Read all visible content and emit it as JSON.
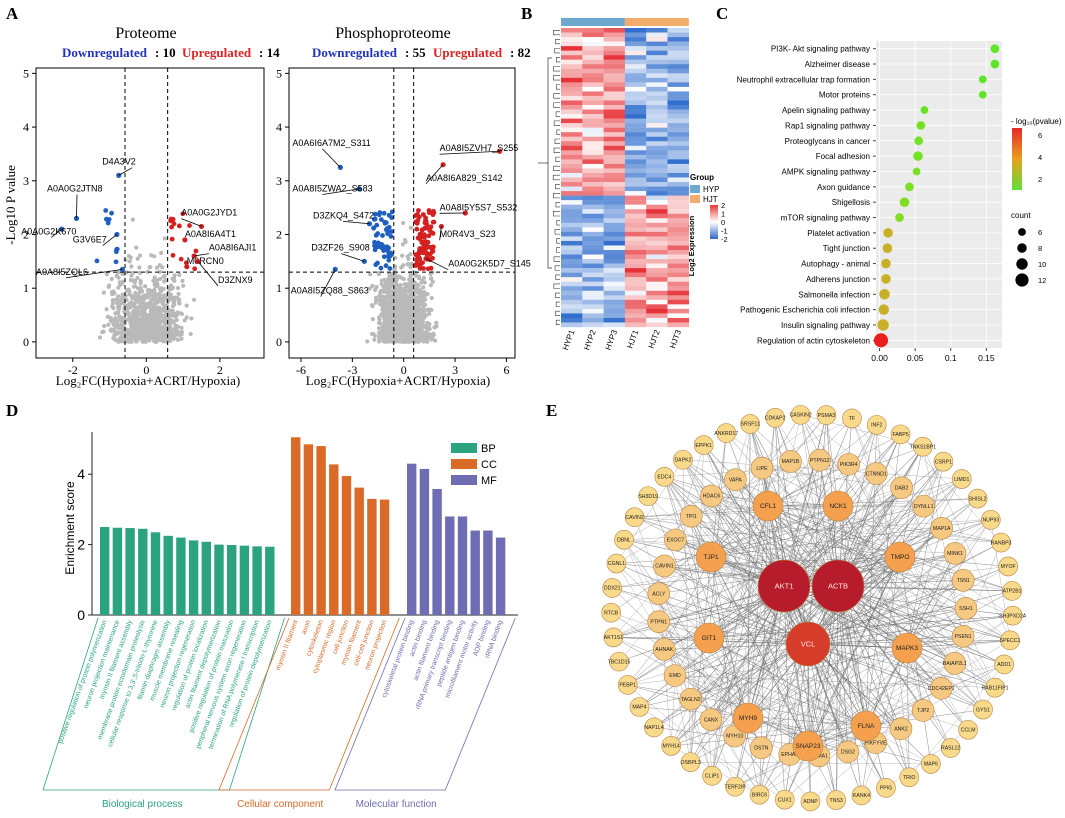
{
  "panel_labels": [
    "A",
    "B",
    "C",
    "D",
    "E"
  ],
  "chart_data": [
    {
      "id": "proteome",
      "type": "scatter",
      "title": "Proteome",
      "down_label": "Downregulated",
      "down_count": "10",
      "up_label": "Upregulated",
      "up_count": "14",
      "xlabel": "Log₂FC(Hypoxia+ACRT/Hypoxia)",
      "ylabel": "-Log10 P value",
      "xlim": [
        -3,
        3.2
      ],
      "ylim": [
        -0.3,
        5.1
      ],
      "xticks": [
        -2,
        0,
        2
      ],
      "yticks": [
        0,
        1,
        2,
        3,
        4,
        5
      ],
      "vlines": [
        -0.58,
        0.58
      ],
      "hline": 1.3,
      "labels": [
        {
          "text": "D4A3V2",
          "x": -0.75,
          "y": 3.1,
          "lx": -1.2,
          "ly": 3.3
        },
        {
          "text": "A0A0G2JTN8",
          "x": -1.9,
          "y": 2.3,
          "lx": -2.7,
          "ly": 2.8
        },
        {
          "text": "A0A0G2K670",
          "x": -2.3,
          "y": 2.1,
          "lx": -3.4,
          "ly": 2.0
        },
        {
          "text": "G3V6E7",
          "x": -0.8,
          "y": 2.0,
          "lx": -2.0,
          "ly": 1.85
        },
        {
          "text": "A0A8I5ZQL6",
          "x": -0.65,
          "y": 1.35,
          "lx": -3.0,
          "ly": 1.25
        },
        {
          "text": "A0A0G2JYD1",
          "x": 1.5,
          "y": 2.15,
          "lx": 0.95,
          "ly": 2.35
        },
        {
          "text": "A0A8I6A4T1",
          "x": 1.05,
          "y": 1.9,
          "lx": 1.05,
          "ly": 1.95
        },
        {
          "text": "A0A8I6AJI1",
          "x": 1.3,
          "y": 1.6,
          "lx": 1.7,
          "ly": 1.7
        },
        {
          "text": "M0RCN0",
          "x": 1.1,
          "y": 1.4,
          "lx": 1.1,
          "ly": 1.45
        },
        {
          "text": "D3ZNX9",
          "x": 1.4,
          "y": 1.5,
          "lx": 1.95,
          "ly": 1.1
        }
      ]
    },
    {
      "id": "phosphoproteome",
      "type": "scatter",
      "title": "Phosphoproteome",
      "down_label": "Downregulated",
      "down_count": "55",
      "up_label": "Upregulated",
      "up_count": "82",
      "xlabel": "Log₂FC(Hypoxia+ACRT/Hypoxia)",
      "ylabel": "",
      "xlim": [
        -6.7,
        6.5
      ],
      "ylim": [
        -0.3,
        5.1
      ],
      "xticks": [
        -6,
        -3,
        0,
        3,
        6
      ],
      "yticks": [
        0,
        1,
        2,
        3,
        4,
        5
      ],
      "vlines": [
        -0.58,
        0.58
      ],
      "hline": 1.3,
      "labels": [
        {
          "text": "A0A6I6A7M2_S311",
          "x": -3.7,
          "y": 3.25,
          "lx": -6.5,
          "ly": 3.65
        },
        {
          "text": "A0A8I5ZVH7_S255",
          "x": 5.6,
          "y": 3.55,
          "lx": 2.1,
          "ly": 3.55
        },
        {
          "text": "A0A8I6A829_S142",
          "x": 2.3,
          "y": 3.3,
          "lx": 1.3,
          "ly": 3.0
        },
        {
          "text": "A0A8I5ZWA2_S583",
          "x": -2.6,
          "y": 2.85,
          "lx": -6.5,
          "ly": 2.8
        },
        {
          "text": "A0A8I5Y5S7_S532",
          "x": 3.6,
          "y": 2.4,
          "lx": 2.1,
          "ly": 2.45
        },
        {
          "text": "D3ZKQ4_S472",
          "x": -2.0,
          "y": 2.2,
          "lx": -5.3,
          "ly": 2.3
        },
        {
          "text": "M0R4V3_S23",
          "x": 2.2,
          "y": 2.15,
          "lx": 2.1,
          "ly": 1.95
        },
        {
          "text": "D3ZF26_S908",
          "x": -2.3,
          "y": 1.5,
          "lx": -5.4,
          "ly": 1.7
        },
        {
          "text": "A0A0G2K5D7_S145",
          "x": 1.3,
          "y": 1.55,
          "lx": 2.6,
          "ly": 1.4
        },
        {
          "text": "A0A8I5ZQ88_S863",
          "x": -4.0,
          "y": 1.35,
          "lx": -6.6,
          "ly": 0.9
        }
      ]
    },
    {
      "id": "heatmap",
      "type": "heatmap",
      "columns": [
        "HYP1",
        "HYP2",
        "HYP3",
        "HJT1",
        "HJT2",
        "HJT3"
      ],
      "groups": [
        {
          "name": "HYP",
          "color": "#6fa8cf"
        },
        {
          "name": "HJT",
          "color": "#f2ac6b"
        }
      ],
      "legend_title": "Group",
      "scale_title": "Log2 Expression",
      "scale_ticks": [
        2,
        1,
        0,
        -1,
        -2
      ],
      "n_rows": 66
    },
    {
      "id": "kegg",
      "type": "scatter",
      "subtype": "bubble",
      "categories": [
        "PI3K- Akt signaling pathway",
        "Alzheimer disease",
        "Neutrophil extracellular trap formation",
        "Motor proteins",
        "Apelin signaling pathway",
        "Rap1 signaling pathway",
        "Proteoglycans in cancer",
        "Focal adhesion",
        "AMPK signaling pathway",
        "Axon guidance",
        "Shigellosis",
        "mTOR signaling pathway",
        "Platelet activation",
        "Tight junction",
        "Autophagy -  animal",
        "Adherens junction",
        "Salmonella infection",
        "Pathogenic Escherichia coli infection",
        "Insulin signaling pathway",
        "Regulation of actin cytoskeleton"
      ],
      "x": [
        0.162,
        0.162,
        0.145,
        0.145,
        0.063,
        0.058,
        0.055,
        0.054,
        0.052,
        0.042,
        0.035,
        0.028,
        0.012,
        0.011,
        0.009,
        0.009,
        0.007,
        0.006,
        0.005,
        0.002
      ],
      "count": [
        7,
        7,
        6,
        6,
        6,
        7,
        7,
        8,
        6,
        7,
        8,
        7,
        8,
        8,
        8,
        8,
        9,
        9,
        10,
        13
      ],
      "neglog10p": [
        1.6,
        1.6,
        1.6,
        1.6,
        1.8,
        2.0,
        2.0,
        2.0,
        2.1,
        2.1,
        2.2,
        2.2,
        3.5,
        3.6,
        3.7,
        3.8,
        4.0,
        4.1,
        4.2,
        7.0
      ],
      "xticks": [
        0.0,
        0.05,
        0.1,
        0.15
      ],
      "xlim": [
        -0.005,
        0.172
      ],
      "color_title": "- log₁₀(pvalue)",
      "color_ticks": [
        6,
        4,
        2
      ],
      "size_title": "count",
      "size_ticks": [
        6,
        8,
        10,
        12
      ]
    },
    {
      "id": "go",
      "type": "bar",
      "ylabel": "Enrichment score",
      "ylim": [
        0,
        5.2
      ],
      "yticks": [
        0,
        2,
        4
      ],
      "series": [
        {
          "name": "BP",
          "color": "#2ba37f",
          "categories": [
            "positive regulation of protein polymerization",
            "neuron projection maintenance",
            "myosin II filament assembly",
            "membrane protein ectodomain proteolysis",
            "cellular response to 3,3',5-triiodo-L-thyronine",
            "filamin diaphragm assembly",
            "muscle membrane resealing",
            "neuron projection regeneration",
            "regulation of protein localization",
            "actin filament depolymerization",
            "positive regulation of protein maturation",
            "peripheral nervous system axon regeneration",
            "termination of RNA polymerase I transcription",
            "regulation of protein depolymerization"
          ],
          "values": [
            2.5,
            2.48,
            2.47,
            2.45,
            2.35,
            2.25,
            2.2,
            2.12,
            2.08,
            2.0,
            1.99,
            1.97,
            1.95,
            1.94
          ]
        },
        {
          "name": "CC",
          "color": "#d96a28",
          "categories": [
            "myosin II filament",
            "axon",
            "cytoskeleton",
            "cytoplasmic region",
            "cell junction",
            "myosin filament",
            "cell-cell junction",
            "neuron projection"
          ],
          "values": [
            5.05,
            4.85,
            4.8,
            4.28,
            3.95,
            3.62,
            3.3,
            3.28
          ]
        },
        {
          "name": "MF",
          "color": "#6e6db3",
          "categories": [
            "cytoskeletal protein binding",
            "actin binding",
            "actin filament binding",
            "rRNA primary transcript binding",
            "peptide antigen binding",
            "microfilament motor activity",
            "ADP binding",
            "rRNA binding"
          ],
          "values": [
            4.3,
            4.15,
            3.58,
            2.8,
            2.8,
            2.4,
            2.4,
            2.2
          ]
        }
      ],
      "group_labels": [
        "Biological process",
        "Cellular component",
        "Molecular function"
      ]
    },
    {
      "id": "ppi",
      "type": "network",
      "hubs": [
        "AKT1",
        "ACTB",
        "VCL"
      ],
      "mid_nodes": [
        "CFL1",
        "NCK1",
        "TJP1",
        "TMPO",
        "GIT1",
        "MAPK3",
        "MYH9",
        "FLNA",
        "SNAP23"
      ],
      "outer_nodes": [
        "TF",
        "INF2",
        "FABP5",
        "TNKS1BP1",
        "CSRP1",
        "LIMD1",
        "SHISL2",
        "NUP93",
        "RANBP3",
        "MYOF",
        "ATP2B1",
        "SH3PXD2A",
        "SPECC1",
        "ADD1",
        "RAB11FIP1",
        "GYS1",
        "CCLM",
        "RASL12",
        "MAP6",
        "TRIO",
        "PPIG",
        "KANK4",
        "TNS3",
        "ADNP",
        "CUX1",
        "BIRC6",
        "TERF2IP",
        "CLIP1",
        "OSBPL3",
        "MYH14",
        "NAP1L4",
        "MAP4",
        "PEBP1",
        "TBC1D15",
        "AKT1S1",
        "RTCB",
        "DDX21",
        "CGNL1",
        "DBNL",
        "CAVIN2",
        "SH3D19",
        "EDC4",
        "DAPK2",
        "EPPK1",
        "ANKRD17",
        "SRSF11",
        "CDKAP2",
        "CASKIN2",
        "PSMA3"
      ],
      "inner_nodes": [
        "PTPN12",
        "PIK3R4",
        "CTNND1",
        "DAB2",
        "DYNLL1",
        "MAP1A",
        "MINK1",
        "TSN1",
        "SSH1",
        "PSEN1",
        "BAIAP2L1",
        "CDC42EP1",
        "TJP2",
        "ANK2",
        "PIKFYVE",
        "DSG2",
        "NUMA1",
        "EPHA2",
        "DSTN",
        "MYH10",
        "CANX",
        "TAGLN2",
        "EMD",
        "AHNAK",
        "PTPN1",
        "ACLY",
        "CAVIN1",
        "EXOC7",
        "TPI1",
        "HDAC6",
        "VAPA",
        "LIPE",
        "MAP1B"
      ]
    }
  ]
}
